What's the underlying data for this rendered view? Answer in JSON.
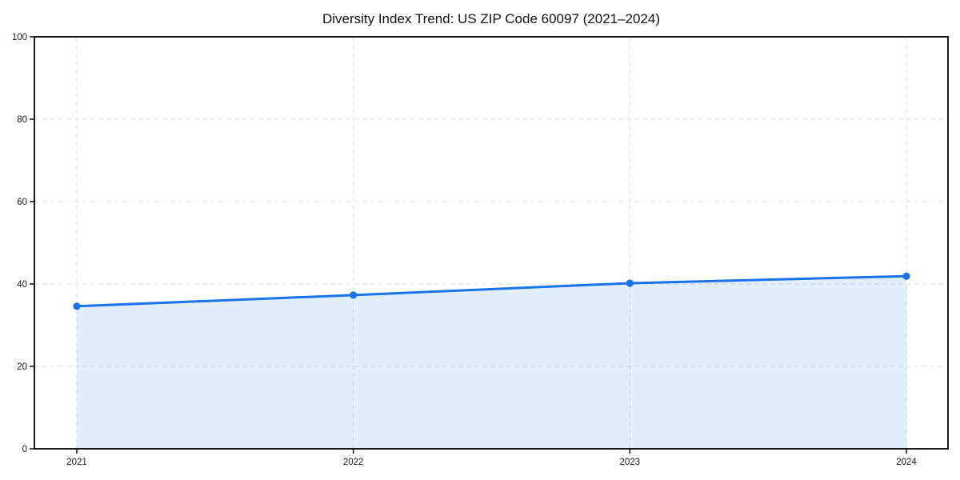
{
  "page": {
    "background": "#ffffff"
  },
  "chart_data": {
    "type": "line",
    "title": "Diversity Index Trend: US ZIP Code 60097 (2021–2024)",
    "xlabel": "",
    "ylabel": "",
    "x": [
      "2021",
      "2022",
      "2023",
      "2024"
    ],
    "series": [
      {
        "name": "Diversity Index",
        "values": [
          34.6,
          37.3,
          40.2,
          41.9
        ]
      }
    ],
    "ylim": [
      0,
      100
    ],
    "yticks": [
      0,
      20,
      40,
      60,
      80,
      100
    ],
    "grid": true,
    "grid_style": "dashed",
    "legend_position": "none",
    "area_fill": true,
    "marker": "circle",
    "colors": {
      "line": "#1a73e8",
      "marker": "#1a73e8",
      "fill": "rgba(26,115,232,0.12)",
      "grid": "#e0e0e0",
      "axis": "#000000",
      "text": "#1a1a1a"
    }
  }
}
